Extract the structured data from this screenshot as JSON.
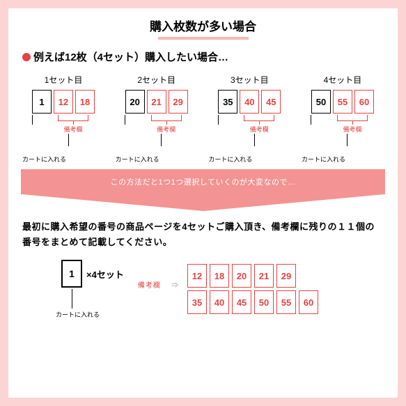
{
  "title": "購入枚数が多い場合",
  "example_line": "例えば12枚（4セット）購入したい場合…",
  "sets": [
    {
      "label": "1セット目",
      "main": "1",
      "extras": [
        "12",
        "18"
      ]
    },
    {
      "label": "2セット目",
      "main": "20",
      "extras": [
        "21",
        "29"
      ]
    },
    {
      "label": "3セット目",
      "main": "35",
      "extras": [
        "40",
        "45"
      ]
    },
    {
      "label": "4セット目",
      "main": "50",
      "extras": [
        "55",
        "60"
      ]
    }
  ],
  "note_label": "備考欄",
  "cart_label": "カートに入れる",
  "arrow_text": "この方法だと1つ1つ選択していくのが大変なので…",
  "instruction": "最初に購入希望の番号の商品ページを4セットご購入頂き、備考欄に残りの１１個の番号をまとめて記載してください。",
  "bottom_main": "1",
  "bottom_times": "×4セット",
  "mid_label": "備考欄",
  "mid_arrow": "⇒",
  "grid_row1": [
    "12",
    "18",
    "20",
    "21",
    "29"
  ],
  "grid_row2": [
    "35",
    "40",
    "45",
    "50",
    "55",
    "60"
  ],
  "colors": {
    "frame": "#fcd4d4",
    "accent_red": "#e74242",
    "arrow_bg": "#f49393",
    "underline": "#f7b7b7"
  }
}
